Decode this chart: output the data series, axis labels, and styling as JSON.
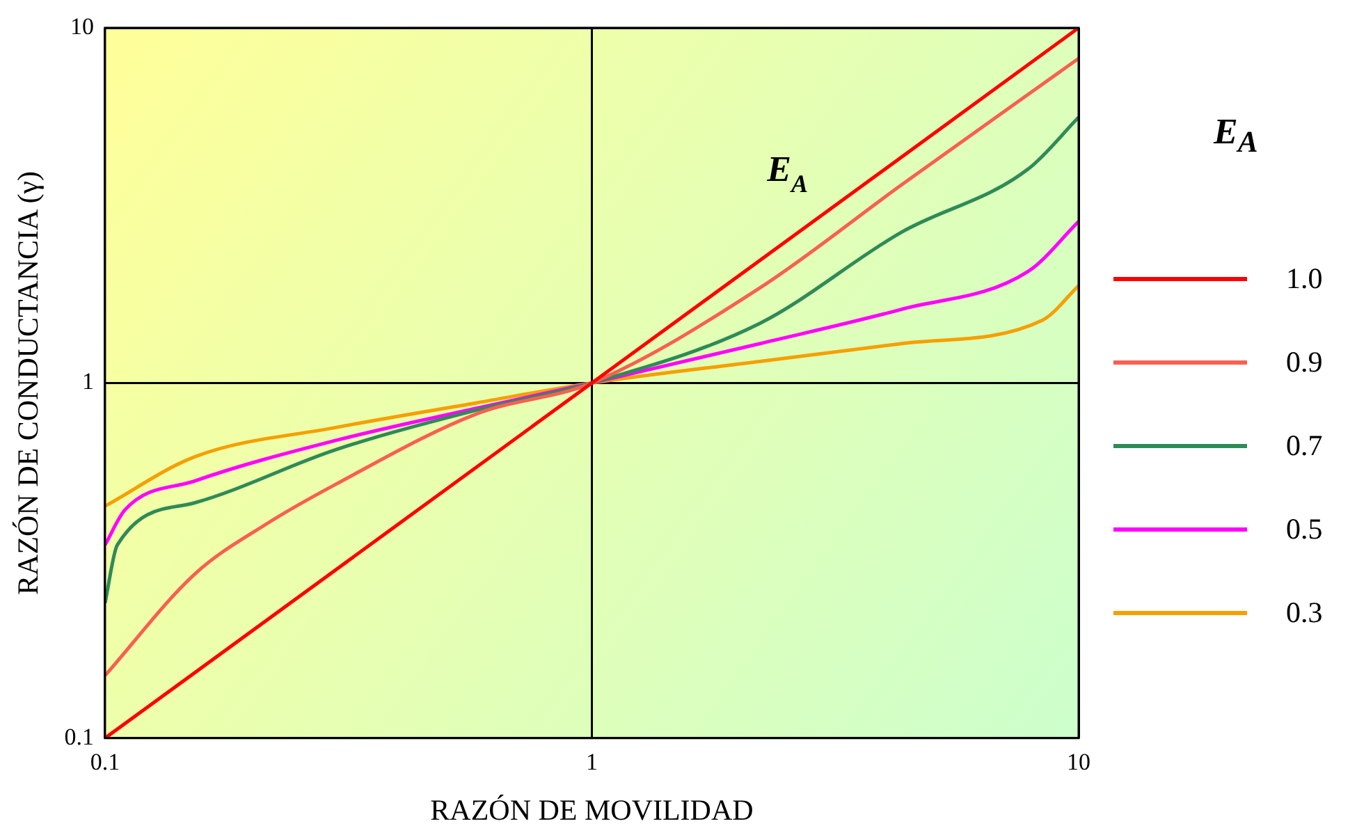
{
  "chart_data": {
    "type": "line",
    "xlabel": "RAZÓN DE MOVILIDAD",
    "ylabel": "RAZÓN DE CONDUCTANCIA (γ)",
    "legend_title": "E$_{A}$",
    "annotations": [
      "E$_{A}$"
    ],
    "log": "xy",
    "xlim": [
      0.1,
      10
    ],
    "ylim": [
      0.1,
      10
    ],
    "xticks": [
      0.1,
      1,
      10
    ],
    "yticks": [
      0.1,
      1,
      10
    ],
    "grid": true,
    "legend": "right",
    "marker": "none",
    "line_style": "solid",
    "series": [
      {
        "name": "1.0",
        "color": "#ff0000",
        "x": [
          0.1,
          10
        ],
        "values": [
          0.1,
          10
        ]
      },
      {
        "name": "0.9",
        "color": "#f86050",
        "x": [
          0.1,
          0.153,
          0.214,
          0.299,
          0.582,
          1,
          2.21,
          4.31,
          10
        ],
        "values": [
          0.15,
          0.29,
          0.4,
          0.52,
          0.82,
          1,
          1.85,
          3.6,
          8.2
        ]
      },
      {
        "name": "0.7",
        "color": "#2e8b57",
        "x": [
          0.1,
          0.106,
          0.153,
          0.299,
          0.582,
          1,
          2.21,
          4.31,
          7.87,
          10
        ],
        "values": [
          0.24,
          0.35,
          0.46,
          0.65,
          0.84,
          1,
          1.47,
          2.65,
          4,
          5.6
        ]
      },
      {
        "name": "0.5",
        "color": "#ff00ff",
        "x": [
          0.1,
          0.11,
          0.153,
          0.299,
          0.582,
          1,
          2.21,
          4.31,
          7.87,
          10
        ],
        "values": [
          0.35,
          0.44,
          0.53,
          0.69,
          0.85,
          1,
          1.29,
          1.61,
          2.06,
          2.85
        ]
      },
      {
        "name": "0.3",
        "color": "#f5a000",
        "x": [
          0.1,
          0.153,
          0.299,
          0.582,
          1,
          2.21,
          4.31,
          8.41,
          10
        ],
        "values": [
          0.45,
          0.62,
          0.75,
          0.88,
          1,
          1.15,
          1.29,
          1.5,
          1.88
        ]
      }
    ]
  }
}
